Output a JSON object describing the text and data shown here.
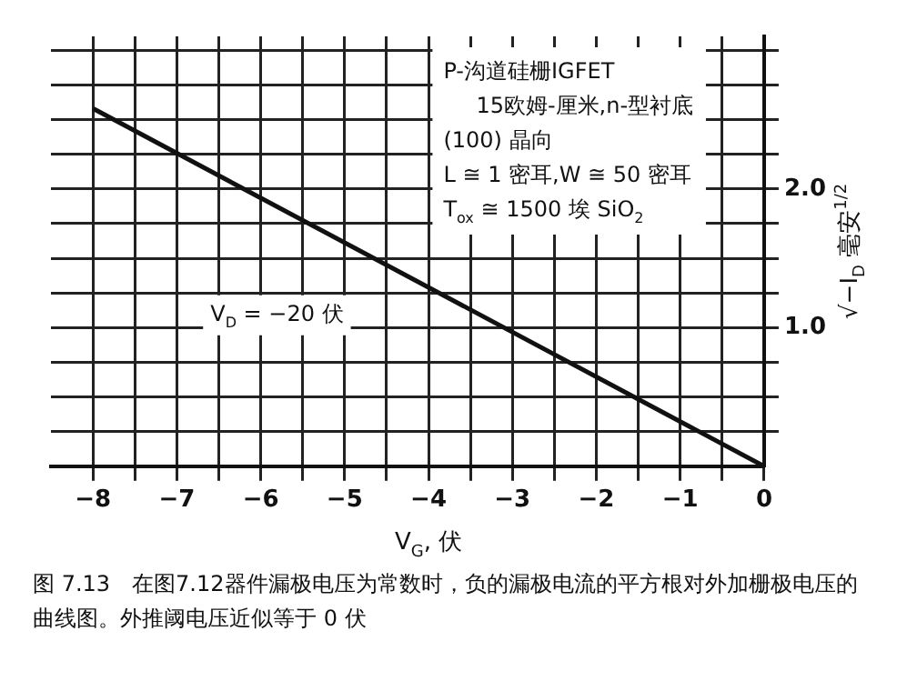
{
  "chart_data": {
    "type": "line",
    "xlabel": "V$_{G}$, 伏",
    "ylabel": "√−I$_{D}$ 毫安$^{1/2}$",
    "x": [
      -8,
      0
    ],
    "series": [
      {
        "color": "#111111",
        "values": [
          2.58,
          0
        ]
      }
    ],
    "xlim": [
      -8.5,
      0
    ],
    "xticks": [
      -8,
      {
        "value": -7.5,
        "label": null
      },
      -7,
      {
        "value": -6.5,
        "label": null
      },
      -6,
      {
        "value": -5.5,
        "label": null
      },
      -5,
      {
        "value": -4.5,
        "label": null
      },
      -4,
      {
        "value": -3.5,
        "label": null
      },
      -3,
      {
        "value": -2.5,
        "label": null
      },
      -2,
      {
        "value": -1.5,
        "label": null
      },
      -1,
      {
        "value": -0.5,
        "label": null
      },
      0
    ],
    "ylim": [
      0,
      3.1
    ],
    "yticks": [
      {
        "value": 0.25,
        "label": null
      },
      {
        "value": 0.5,
        "label": null
      },
      {
        "value": 0.75,
        "label": null
      },
      {
        "value": 1,
        "label": "1.0"
      },
      {
        "value": 1.25,
        "label": null
      },
      {
        "value": 1.5,
        "label": null
      },
      {
        "value": 1.75,
        "label": null
      },
      {
        "value": 2,
        "label": "2.0"
      },
      {
        "value": 2.25,
        "label": null
      },
      {
        "value": 2.5,
        "label": null
      },
      {
        "value": 2.75,
        "label": null
      },
      {
        "value": 3,
        "label": null
      }
    ],
    "grid": true,
    "marker": "none",
    "line_style": "solid",
    "legend": false,
    "annotations": [
      "P-沟道硅栅IGFET",
      "15欧姆-厘米,n-型衬底",
      "(100) 晶向",
      "L ≅ 1 密耳,W ≅ 50 密耳",
      "T$_{ox}$ ≅ 1500 埃 SiO$_{2}$",
      "V$_{D}$ = −20 伏",
      "图 7.13　在图7.12器件漏极电压为常数时，负的漏极电流的平方根对外加栅极电压的曲线图。外推阈电压近似等于 0 伏"
    ]
  }
}
